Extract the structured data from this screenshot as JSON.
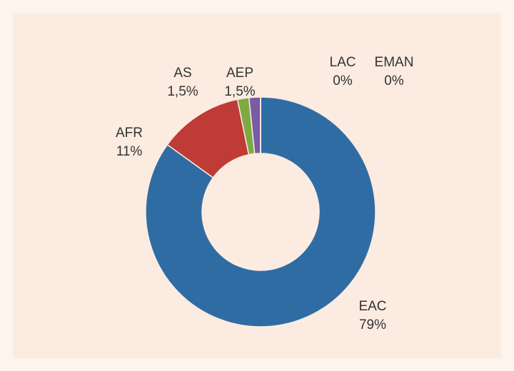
{
  "chart_data": {
    "type": "donut",
    "categories": [
      "EAC",
      "AFR",
      "AS",
      "AEP",
      "LAC",
      "EMAN"
    ],
    "values": [
      79,
      11,
      1.5,
      1.5,
      0,
      0
    ],
    "value_labels": [
      "79%",
      "11%",
      "1,5%",
      "1,5%",
      "0%",
      "0%"
    ],
    "colors": [
      "#2f6ca3",
      "#bf3b36",
      "#7bab42",
      "#7a5ba4",
      "#3ea6c1",
      "#e8903e"
    ]
  }
}
